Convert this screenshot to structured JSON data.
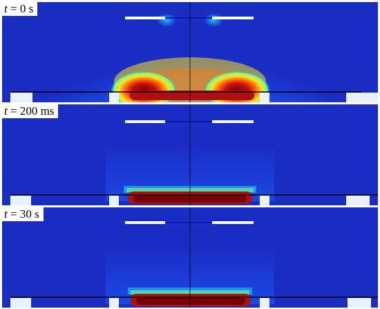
{
  "panels": [
    {
      "time_symbol": "t",
      "time_eq": " = 0 s",
      "field_state": "initial"
    },
    {
      "time_symbol": "t",
      "time_eq": " = 200 ms",
      "field_state": "confined"
    },
    {
      "time_symbol": "t",
      "time_eq": " = 30 s",
      "field_state": "confined"
    }
  ],
  "colors": {
    "background_field": "#1a2ec4",
    "colormap": [
      "#0a17b8",
      "#1e5cff",
      "#22c9ff",
      "#7dff7a",
      "#ffe21a",
      "#ff5a10",
      "#b01010",
      "#7a0000"
    ],
    "electrode": "#ffffff",
    "gap_line": "#000000"
  }
}
